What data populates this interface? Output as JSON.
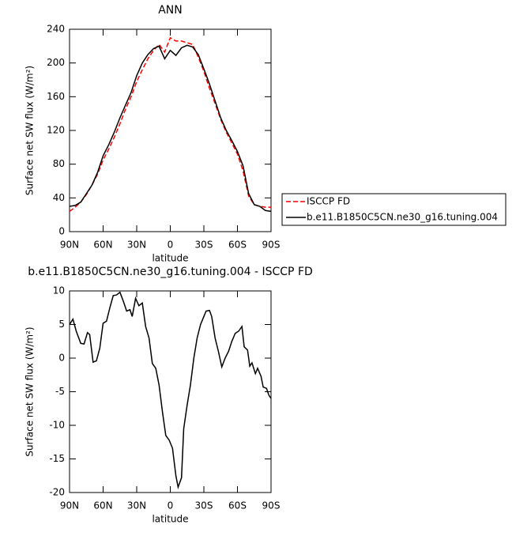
{
  "chart_data": [
    {
      "type": "line",
      "title": "ANN",
      "xlabel": "latitude",
      "ylabel": "Surface net SW flux (W/m²)",
      "x": [
        90,
        85,
        80,
        75,
        70,
        65,
        60,
        55,
        50,
        45,
        40,
        35,
        30,
        25,
        20,
        15,
        10,
        5,
        0,
        -5,
        -10,
        -15,
        -20,
        -25,
        -30,
        -35,
        -40,
        -45,
        -50,
        -55,
        -60,
        -65,
        -70,
        -75,
        -80,
        -85,
        -90
      ],
      "series": [
        {
          "name": "ISCCP FD",
          "color": "#ff0000",
          "dash": true,
          "values": [
            24,
            29,
            35,
            44,
            55,
            68,
            85,
            98,
            112,
            128,
            145,
            160,
            178,
            192,
            205,
            215,
            222,
            213,
            230,
            226,
            226,
            224,
            222,
            207,
            190,
            170,
            152,
            133,
            118,
            105,
            92,
            72,
            42,
            32,
            30,
            29,
            29
          ]
        },
        {
          "name": "b.e11.B1850C5CN.ne30_g16.tuning.004",
          "color": "#000000",
          "dash": false,
          "values": [
            30,
            31,
            35,
            45,
            55,
            70,
            90,
            103,
            118,
            135,
            150,
            165,
            185,
            200,
            210,
            217,
            220,
            205,
            215,
            209,
            218,
            221,
            219,
            210,
            193,
            175,
            155,
            135,
            120,
            108,
            95,
            78,
            45,
            32,
            30,
            25,
            24
          ]
        }
      ],
      "xlim": [
        90,
        -90
      ],
      "xticks": [
        {
          "value": 90,
          "label": "90N"
        },
        {
          "value": 60,
          "label": "60N"
        },
        {
          "value": 30,
          "label": "30N"
        },
        0,
        {
          "value": -30,
          "label": "30S"
        },
        {
          "value": -60,
          "label": "60S"
        },
        {
          "value": -90,
          "label": "90S"
        }
      ],
      "ylim": [
        0,
        240
      ],
      "yticks": [
        0,
        40,
        80,
        120,
        160,
        200,
        240
      ],
      "legend": "right"
    },
    {
      "type": "line",
      "title": "b.e11.B1850C5CN.ne30_g16.tuning.004 - ISCCP FD",
      "xlabel": "latitude",
      "ylabel": "Surface net SW flux (W/m²)",
      "x": [
        90,
        87,
        84,
        80,
        77,
        74,
        72,
        69,
        66,
        63,
        60,
        57,
        54,
        51,
        48,
        45,
        42,
        39,
        36,
        34,
        31,
        28,
        25,
        22,
        19,
        16,
        13,
        10,
        7,
        4,
        1,
        -2,
        -5,
        -7,
        -10,
        -12,
        -15,
        -18,
        -21,
        -24,
        -27,
        -30,
        -32,
        -35,
        -37,
        -40,
        -43,
        -46,
        -49,
        -52,
        -55,
        -58,
        -61,
        -64,
        -66,
        -69,
        -71,
        -73,
        -76,
        -78,
        -81,
        -83,
        -86,
        -88,
        -90
      ],
      "values": [
        5,
        5.8,
        4,
        2.2,
        2.1,
        3.8,
        3.5,
        -0.6,
        -0.4,
        1.5,
        5.2,
        5.5,
        7.5,
        9.3,
        9.4,
        9.8,
        8.5,
        7,
        7.2,
        6.2,
        8.9,
        7.8,
        8.2,
        4.7,
        3,
        -0.8,
        -1.5,
        -4,
        -8,
        -11.5,
        -12.2,
        -13.4,
        -17.5,
        -19.2,
        -17.8,
        -10.5,
        -7,
        -4,
        0,
        3,
        5,
        6.2,
        7,
        7.1,
        6.2,
        3,
        1,
        -1.3,
        0,
        1,
        2.5,
        3.7,
        4,
        4.7,
        1.7,
        1.2,
        -1.2,
        -0.7,
        -2.3,
        -1.5,
        -2.7,
        -4.3,
        -4.5,
        -5.5,
        -6
      ],
      "color": "#000000",
      "xlim": [
        90,
        -90
      ],
      "xticks": [
        {
          "value": 90,
          "label": "90N"
        },
        {
          "value": 60,
          "label": "60N"
        },
        {
          "value": 30,
          "label": "30N"
        },
        0,
        {
          "value": -30,
          "label": "30S"
        },
        {
          "value": -60,
          "label": "60S"
        },
        {
          "value": -90,
          "label": "90S"
        }
      ],
      "ylim": [
        -20,
        10
      ],
      "yticks": [
        -20,
        -15,
        -10,
        -5,
        0,
        5,
        10
      ]
    }
  ]
}
